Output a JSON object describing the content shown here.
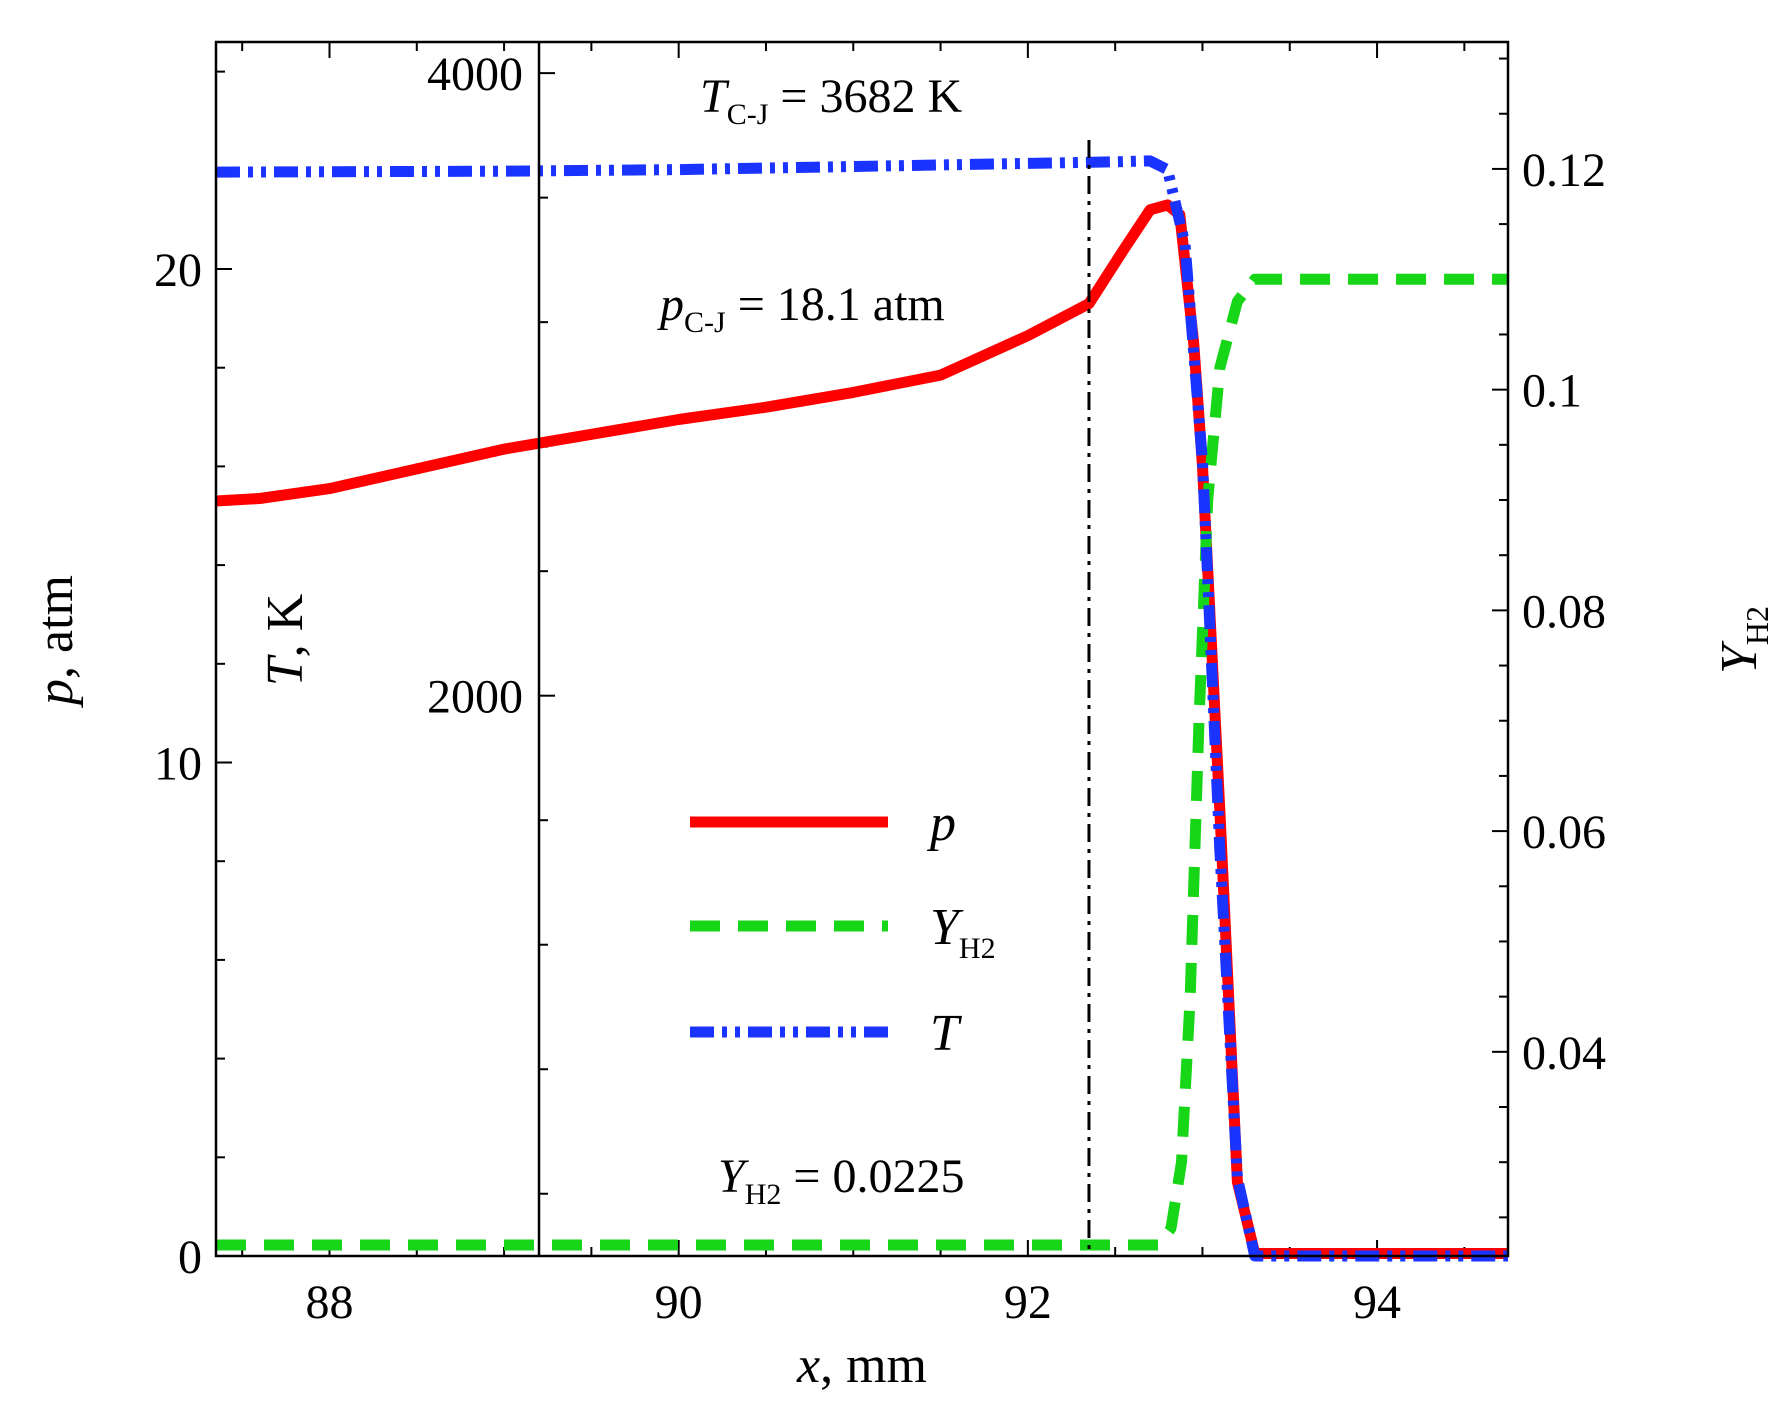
{
  "chart_data": {
    "type": "line",
    "axes": {
      "x": {
        "label_var": "x",
        "label_unit": ", mm",
        "range": [
          87.35,
          94.75
        ],
        "ticks": [
          88,
          90,
          92,
          94
        ],
        "minor_step": 0.5
      },
      "p": {
        "label_var": "p",
        "label_unit": ", atm",
        "range": [
          0,
          24.6
        ],
        "ticks": [
          0,
          10,
          20
        ],
        "minor_step": 2
      },
      "T": {
        "label_var": "T",
        "label_unit": ", K",
        "range": [
          200,
          4100
        ],
        "ticks": [
          2000,
          4000
        ],
        "minor_step": 400,
        "axis_x": 89.2
      },
      "Y": {
        "label_var": "Y",
        "label_sub": "H2",
        "range": [
          0.0215,
          0.1315
        ],
        "ticks": [
          0.04,
          0.06,
          0.08,
          0.1,
          0.12
        ],
        "tick_labels": [
          "0.04",
          "0.06",
          "0.08",
          "0.1",
          "0.12"
        ],
        "minor_step": 0.005
      }
    },
    "series": [
      {
        "name": "p",
        "label_var": "p",
        "axis": "p",
        "color": "#ff0000",
        "style": "solid",
        "x": [
          87.35,
          87.6,
          88.0,
          88.5,
          89.0,
          89.5,
          90.0,
          90.5,
          91.0,
          91.5,
          92.0,
          92.35,
          92.55,
          92.7,
          92.8,
          92.87,
          92.95,
          93.0,
          93.1,
          93.2,
          93.3,
          94.75
        ],
        "y": [
          15.3,
          15.35,
          15.55,
          15.95,
          16.35,
          16.65,
          16.95,
          17.2,
          17.5,
          17.85,
          18.65,
          19.3,
          20.4,
          21.2,
          21.3,
          21.1,
          18.5,
          16.0,
          9.0,
          1.5,
          0.05,
          0.05
        ]
      },
      {
        "name": "YH2",
        "label_var": "Y",
        "label_sub": "H2",
        "axis": "Y",
        "color": "#17d617",
        "style": "dashed",
        "x": [
          87.35,
          92.75,
          92.82,
          92.88,
          92.93,
          92.98,
          93.03,
          93.1,
          93.2,
          93.3,
          94.75
        ],
        "y": [
          0.0225,
          0.0225,
          0.024,
          0.03,
          0.045,
          0.07,
          0.09,
          0.102,
          0.108,
          0.11,
          0.11
        ]
      },
      {
        "name": "T",
        "label_var": "T",
        "axis": "T",
        "color": "#1a33ff",
        "style": "dashdotdot",
        "x": [
          87.35,
          89.0,
          90.0,
          91.0,
          92.0,
          92.5,
          92.7,
          92.8,
          92.9,
          93.0,
          93.1,
          93.2,
          93.3,
          94.75
        ],
        "y": [
          3682,
          3685,
          3690,
          3700,
          3710,
          3715,
          3718,
          3690,
          3450,
          2750,
          1500,
          450,
          200,
          200
        ]
      }
    ],
    "legend": {
      "placement": "center-left",
      "entries": [
        "p",
        "YH2",
        "T"
      ]
    },
    "annotations": {
      "cj_line_x": 92.35,
      "t_cj": {
        "var": "T",
        "sub": "C-J",
        "text": " = 3682 K"
      },
      "p_cj": {
        "var": "p",
        "sub": "C-J",
        "text": " = 18.1 atm"
      },
      "y_h2": {
        "var": "Y",
        "sub": "H2",
        "text": " = 0.0225"
      }
    }
  }
}
